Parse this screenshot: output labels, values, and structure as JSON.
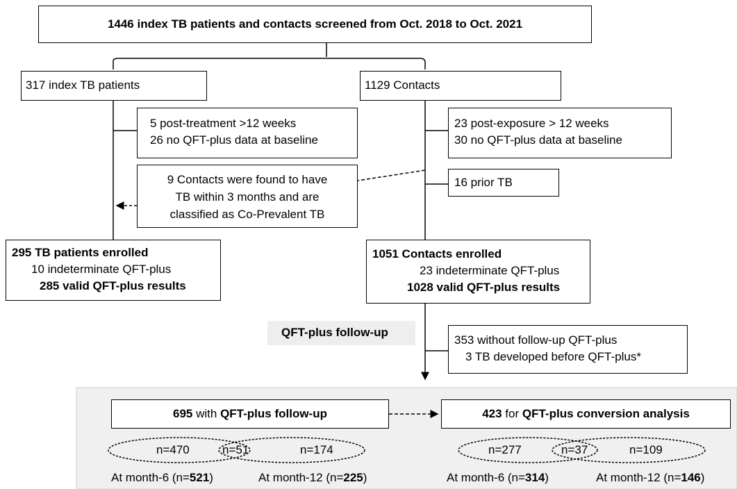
{
  "screened": "1446 index TB patients and contacts screened from Oct. 2018 to Oct. 2021",
  "index_patients": {
    "label": "317 index TB patients",
    "exclusions": [
      "5 post-treatment >12 weeks",
      "26 no QFT-plus data at baseline"
    ],
    "note": [
      "9 Contacts were found to have",
      "TB within 3 months and are",
      "classified as Co-Prevalent TB"
    ],
    "enrolled": [
      "295 TB patients enrolled",
      "10 indeterminate QFT-plus",
      "285 valid QFT-plus results"
    ]
  },
  "contacts": {
    "label": "1129 Contacts",
    "exclusions": [
      "23 post-exposure > 12 weeks",
      "30 no QFT-plus data at baseline"
    ],
    "prior": "16 prior TB",
    "enrolled": [
      "1051 Contacts enrolled",
      "23 indeterminate QFT-plus",
      "1028 valid QFT-plus results"
    ],
    "followup_label": "QFT-plus follow-up",
    "followup_exclusions": [
      "353 without follow-up QFT-plus",
      "3 TB developed before QFT-plus*"
    ]
  },
  "followup": {
    "count": "695",
    "joiner": " with ",
    "label": "QFT-plus follow-up",
    "venn": [
      "n=470",
      "n=51",
      "n=174"
    ],
    "month6": [
      "At month-6 (n=",
      "521",
      ")"
    ],
    "month12": [
      "At month-12 (n=",
      "225",
      ")"
    ]
  },
  "conversion": {
    "count": "423",
    "joiner": " for ",
    "label": "QFT-plus conversion analysis",
    "venn": [
      "n=277",
      "n=37",
      "n=109"
    ],
    "month6": [
      "At month-6 (n=",
      "314",
      ")"
    ],
    "month12": [
      "At month-12 (n=",
      "146",
      ")"
    ]
  }
}
